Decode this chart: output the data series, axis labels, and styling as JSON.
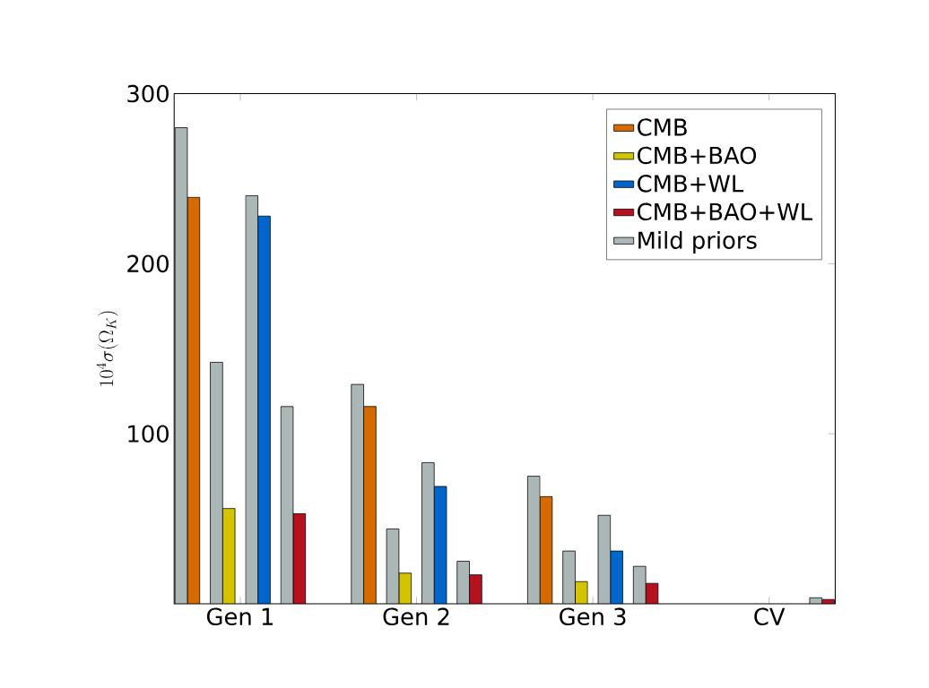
{
  "chart_data": {
    "type": "bar",
    "ylabel": "10^4\\sigma(\\Omega_K)",
    "categories": [
      "Gen 1",
      "Gen 2",
      "Gen 3",
      "CV"
    ],
    "series": [
      {
        "name": "CMB",
        "color": "#d56b00",
        "values": [
          239,
          116,
          63,
          null
        ]
      },
      {
        "name": "CMB+BAO",
        "color": "#d4c400",
        "values": [
          56,
          18,
          13,
          null
        ]
      },
      {
        "name": "CMB+WL",
        "color": "#0066cc",
        "values": [
          228,
          69,
          31,
          null
        ]
      },
      {
        "name": "CMB+BAO+WL",
        "color": "#b5111f",
        "values": [
          53,
          17,
          12,
          2.5
        ]
      },
      {
        "name": "Mild priors",
        "color": "#abb7b7",
        "values": [
          280,
          129,
          75,
          null
        ]
      },
      {
        "color": "#abb7b7",
        "values": [
          142,
          44,
          31,
          null
        ]
      },
      {
        "color": "#abb7b7",
        "values": [
          240,
          83,
          52,
          null
        ]
      },
      {
        "color": "#abb7b7",
        "values": [
          116,
          25,
          22,
          3.5
        ]
      }
    ],
    "ylim": [
      0,
      300
    ],
    "yticks": [
      100,
      200,
      300
    ],
    "legend": "top right",
    "grid": false
  }
}
